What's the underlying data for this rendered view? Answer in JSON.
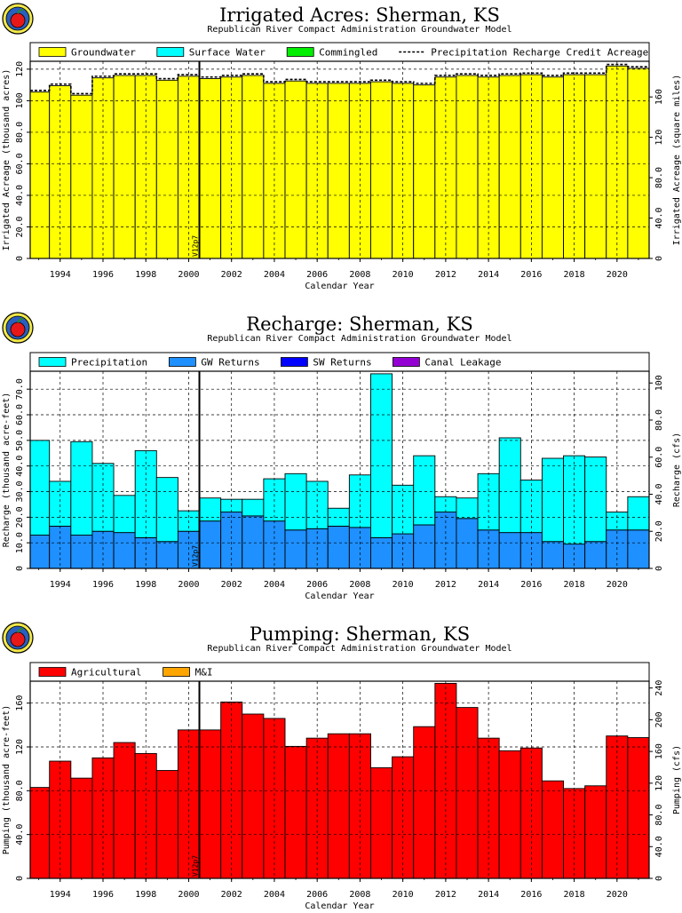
{
  "chart_data": [
    {
      "type": "bar",
      "title": "Irrigated Acres: Sherman, KS",
      "subtitle": "Republican River Compact Administration Groundwater Model",
      "xlabel": "Calendar Year",
      "ylabel": "Irrigated Acreage (thousand acres)",
      "y2label": "Irrigated Acreage (square miles)",
      "x": [
        1993,
        1994,
        1995,
        1996,
        1997,
        1998,
        1999,
        2000,
        2001,
        2002,
        2003,
        2004,
        2005,
        2006,
        2007,
        2008,
        2009,
        2010,
        2011,
        2012,
        2013,
        2014,
        2015,
        2016,
        2017,
        2018,
        2019,
        2020,
        2021
      ],
      "xticks": [
        1994,
        1996,
        1998,
        2000,
        2002,
        2004,
        2006,
        2008,
        2010,
        2012,
        2014,
        2016,
        2018,
        2020
      ],
      "xlim": [
        1992.6,
        2021.5
      ],
      "ylim": [
        0,
        125
      ],
      "yticks": [
        0,
        20,
        40,
        60,
        80,
        100,
        120
      ],
      "ytick_labels": [
        "0",
        "20.0",
        "40.0",
        "60.0",
        "80.0",
        "100",
        "120"
      ],
      "y2ticks": [
        0,
        40,
        80,
        120,
        160
      ],
      "y2ticks_labels": [
        "0",
        "40.0",
        "80.0",
        "120",
        "160"
      ],
      "y2factor": 1.5625,
      "grid": true,
      "legend_position": "top",
      "legend": [
        {
          "name": "Groundwater",
          "color": "#ffff00",
          "kind": "box"
        },
        {
          "name": "Surface Water",
          "color": "#00ffff",
          "kind": "box"
        },
        {
          "name": "Commingled",
          "color": "#00ee00",
          "kind": "box"
        },
        {
          "name": "Precipitation Recharge Credit Acreage",
          "kind": "dash"
        }
      ],
      "series": [
        {
          "name": "Groundwater",
          "color": "#ffff00",
          "values": [
            105.5,
            109.5,
            103.5,
            114.5,
            116.0,
            116.0,
            113.0,
            115.5,
            114.0,
            115.0,
            116.0,
            111.0,
            112.5,
            111.0,
            111.0,
            111.0,
            112.0,
            111.0,
            110.0,
            115.0,
            116.0,
            115.0,
            116.0,
            116.5,
            115.0,
            116.5,
            116.5,
            122.0,
            120.5
          ]
        },
        {
          "name": "Surface Water",
          "color": "#00ffff",
          "values": [
            0,
            0,
            0,
            0,
            0,
            0,
            0,
            0,
            0,
            0,
            0,
            0,
            0,
            0,
            0,
            0,
            0,
            0,
            0,
            0,
            0,
            0,
            0,
            0,
            0,
            0,
            0,
            0,
            0
          ]
        },
        {
          "name": "Commingled",
          "color": "#00ee00",
          "values": [
            0,
            0,
            0,
            0,
            0,
            0,
            0,
            0,
            0,
            0,
            0,
            0,
            0,
            0,
            0,
            0,
            0,
            0,
            0,
            0,
            0,
            0,
            0,
            0,
            0,
            0,
            0,
            0,
            0
          ]
        }
      ],
      "line": {
        "name": "Precipitation Recharge Credit Acreage",
        "values": [
          106.5,
          110.5,
          104.5,
          115.5,
          117.0,
          117.0,
          114.0,
          116.5,
          115.0,
          116.0,
          117.0,
          112.0,
          113.5,
          112.0,
          112.0,
          112.0,
          113.0,
          112.0,
          111.0,
          116.0,
          117.0,
          116.0,
          117.0,
          117.5,
          116.0,
          117.5,
          117.5,
          123.0,
          121.5
        ]
      },
      "marker": {
        "x": 2000.5,
        "label": "V12p7"
      }
    },
    {
      "type": "bar",
      "title": "Recharge: Sherman, KS",
      "subtitle": "Republican River Compact Administration Groundwater Model",
      "xlabel": "Calendar Year",
      "ylabel": "Recharge (thousand acre-feet)",
      "y2label": "Recharge (cfs)",
      "x": [
        1993,
        1994,
        1995,
        1996,
        1997,
        1998,
        1999,
        2000,
        2001,
        2002,
        2003,
        2004,
        2005,
        2006,
        2007,
        2008,
        2009,
        2010,
        2011,
        2012,
        2013,
        2014,
        2015,
        2016,
        2017,
        2018,
        2019,
        2020,
        2021
      ],
      "xticks": [
        1994,
        1996,
        1998,
        2000,
        2002,
        2004,
        2006,
        2008,
        2010,
        2012,
        2014,
        2016,
        2018,
        2020
      ],
      "xlim": [
        1992.6,
        2021.5
      ],
      "ylim": [
        0,
        77
      ],
      "yticks": [
        0,
        10,
        20,
        30,
        40,
        50,
        60,
        70
      ],
      "ytick_labels": [
        "0",
        "10.0",
        "20.0",
        "30.0",
        "40.0",
        "50.0",
        "60.0",
        "70.0"
      ],
      "y2ticks": [
        0,
        20,
        40,
        60,
        80,
        100
      ],
      "y2ticks_labels": [
        "0",
        "20.0",
        "40.0",
        "60.0",
        "80.0",
        "100"
      ],
      "y2factor": 1.381,
      "grid": true,
      "legend_position": "top",
      "legend": [
        {
          "name": "Precipitation",
          "color": "#00ffff",
          "kind": "box"
        },
        {
          "name": "GW Returns",
          "color": "#1e90ff",
          "kind": "box"
        },
        {
          "name": "SW Returns",
          "color": "#0000ff",
          "kind": "box"
        },
        {
          "name": "Canal Leakage",
          "color": "#9400d3",
          "kind": "box"
        }
      ],
      "series": [
        {
          "name": "GW Returns",
          "color": "#1e90ff",
          "values": [
            13.0,
            16.5,
            13.0,
            14.5,
            14.0,
            12.0,
            10.5,
            14.5,
            18.5,
            22.0,
            20.5,
            18.5,
            15.0,
            15.5,
            16.5,
            16.0,
            12.0,
            13.5,
            17.0,
            22.0,
            19.5,
            15.0,
            14.0,
            14.0,
            10.5,
            9.5,
            10.5,
            15.0,
            15.0
          ]
        },
        {
          "name": "Precipitation",
          "color": "#00ffff",
          "values": [
            37.0,
            17.5,
            36.5,
            26.5,
            14.5,
            34.0,
            25.0,
            8.0,
            9.0,
            5.0,
            6.5,
            16.5,
            22.0,
            18.5,
            7.0,
            20.5,
            64.0,
            19.0,
            27.0,
            6.0,
            8.0,
            22.0,
            37.0,
            20.5,
            32.5,
            34.5,
            33.0,
            7.0,
            13.0
          ]
        },
        {
          "name": "SW Returns",
          "color": "#0000ff",
          "values": [
            0,
            0,
            0,
            0,
            0,
            0,
            0,
            0,
            0,
            0,
            0,
            0,
            0,
            0,
            0,
            0,
            0,
            0,
            0,
            0,
            0,
            0,
            0,
            0,
            0,
            0,
            0,
            0,
            0
          ]
        },
        {
          "name": "Canal Leakage",
          "color": "#9400d3",
          "values": [
            0,
            0,
            0,
            0,
            0,
            0,
            0,
            0,
            0,
            0,
            0,
            0,
            0,
            0,
            0,
            0,
            0,
            0,
            0,
            0,
            0,
            0,
            0,
            0,
            0,
            0,
            0,
            0,
            0
          ]
        }
      ],
      "marker": {
        "x": 2000.5,
        "label": "V12p7"
      }
    },
    {
      "type": "bar",
      "title": "Pumping: Sherman, KS",
      "subtitle": "Republican River Compact Administration Groundwater Model",
      "xlabel": "Calendar Year",
      "ylabel": "Pumping (thousand acre-feet)",
      "y2label": "Pumping (cfs)",
      "x": [
        1993,
        1994,
        1995,
        1996,
        1997,
        1998,
        1999,
        2000,
        2001,
        2002,
        2003,
        2004,
        2005,
        2006,
        2007,
        2008,
        2009,
        2010,
        2011,
        2012,
        2013,
        2014,
        2015,
        2016,
        2017,
        2018,
        2019,
        2020,
        2021
      ],
      "xticks": [
        1994,
        1996,
        1998,
        2000,
        2002,
        2004,
        2006,
        2008,
        2010,
        2012,
        2014,
        2016,
        2018,
        2020
      ],
      "xlim": [
        1992.6,
        2021.5
      ],
      "ylim": [
        0,
        180
      ],
      "yticks": [
        0,
        40,
        80,
        120,
        160
      ],
      "ytick_labels": [
        "0",
        "40.0",
        "80.0",
        "120",
        "160"
      ],
      "y2ticks": [
        0,
        40,
        80,
        120,
        160,
        200,
        240
      ],
      "y2ticks_labels": [
        "0",
        "40.0",
        "80.0",
        "120",
        "160",
        "200",
        "240"
      ],
      "y2factor": 1.381,
      "grid": true,
      "legend_position": "top",
      "legend": [
        {
          "name": "Agricultural",
          "color": "#ff0000",
          "kind": "box"
        },
        {
          "name": "M&I",
          "color": "#ffa500",
          "kind": "box"
        }
      ],
      "series": [
        {
          "name": "Agricultural",
          "color": "#ff0000",
          "values": [
            83.0,
            107.0,
            91.5,
            110.0,
            124.0,
            114.0,
            98.5,
            135.5,
            135.5,
            161.0,
            150.0,
            146.0,
            120.5,
            128.0,
            132.0,
            132.0,
            101.0,
            111.0,
            138.5,
            178.0,
            156.0,
            128.0,
            116.5,
            119.0,
            89.0,
            82.0,
            84.5,
            130.0,
            128.5
          ]
        },
        {
          "name": "M&I",
          "color": "#ffa500",
          "values": [
            0,
            0,
            0,
            0,
            0,
            0,
            0,
            0,
            0,
            0,
            0,
            0,
            0,
            0,
            0,
            0,
            0,
            0,
            0,
            0,
            0,
            0,
            0,
            0,
            0,
            0,
            0,
            0,
            0
          ]
        }
      ],
      "marker": {
        "x": 2000.5,
        "label": "V12p7"
      }
    }
  ]
}
